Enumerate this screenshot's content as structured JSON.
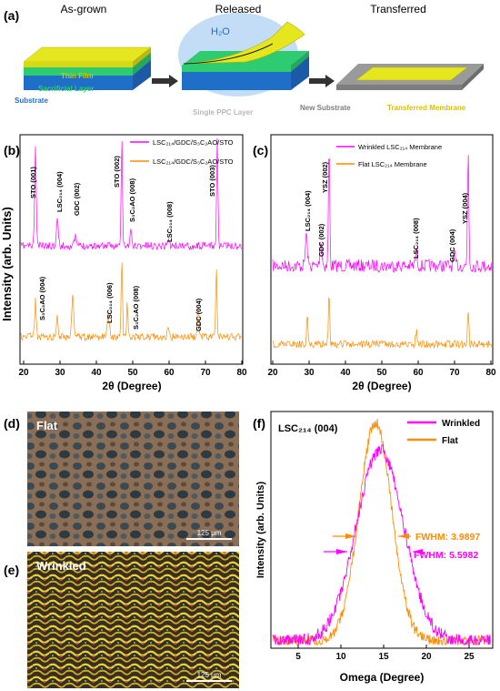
{
  "panel_a": {
    "letter": "(a)",
    "stage_labels": [
      "As-grown",
      "Released",
      "Transferred"
    ],
    "water_label": "H₂O",
    "layer_labels": {
      "thin_film": "Thin Film",
      "sacrificial": "Sacrificial Layer",
      "substrate": "Substrate",
      "ppc": "Single PPC Layer",
      "new_substrate": "New Substrate",
      "membrane": "Transferred Membrane"
    },
    "colors": {
      "substrate": "#1f6fc9",
      "sacrificial": "#2ecc71",
      "film": "#e6e61e",
      "ppc_text": "#b8b8b8",
      "new_sub": "#9a9a9a",
      "film_text": "#d4c400",
      "sac_text": "#2ecc71",
      "sub_text": "#1f6fc9",
      "water": "#bcd9f5"
    }
  },
  "panel_b": {
    "letter": "(b)",
    "legend": [
      "LSC₂₁₄/GDC/S₃C₂AO/STO",
      "LSC₂₁₄/GDC/S₃C₂AO/STO"
    ],
    "peak_labels_top": [
      "STO (001)",
      "LSC₂₁₄ (004)",
      "GDC (002)",
      "STO (002)",
      "S₃C₂AO (008)",
      "LSC₂₁₄ (008)",
      "STO (003)"
    ],
    "peak_labels_bottom": [
      "S₃C₂AO (004)",
      "LSC₂₁₄ (006)",
      "S₃C₂AO (008)",
      "GDC (004)"
    ],
    "ylabel": "Intensity (arb. Units)"
  },
  "panel_c": {
    "letter": "(c)",
    "legend": [
      "Wrinkled LSC₂₁₄ Membrane",
      "Flat LSC₂₁₄ Membrane"
    ],
    "peak_labels": [
      "LSC₂₁₄ (004)",
      "GDC (002)",
      "YSZ (002)",
      "LSC₂₁₄ (008)",
      "GDC (004)",
      "YSZ (004)"
    ]
  },
  "xrd_axis": {
    "xlabel": "2θ (Degree)",
    "ticks": [
      "20",
      "30",
      "40",
      "50",
      "60",
      "70",
      "80"
    ]
  },
  "panel_d": {
    "letter": "(d)",
    "label": "Flat",
    "scale": "125 μm"
  },
  "panel_e": {
    "letter": "(e)",
    "label": "Wrinkled",
    "scale": "125 μm"
  },
  "panel_f": {
    "letter": "(f)",
    "title": "LSC₂₁₄ (004)",
    "legend": [
      "Wrinkled",
      "Flat"
    ],
    "fwhm_flat": "FWHM: 3.9897",
    "fwhm_wrinkled": "FWHM: 5.5982",
    "xlabel": "Omega (Degree)",
    "ylabel": "Intensity (arb. Units)",
    "ticks": [
      "5",
      "10",
      "15",
      "20",
      "25"
    ]
  },
  "series_colors": {
    "magenta": "#ff00ff",
    "orange": "#ff8c00"
  }
}
